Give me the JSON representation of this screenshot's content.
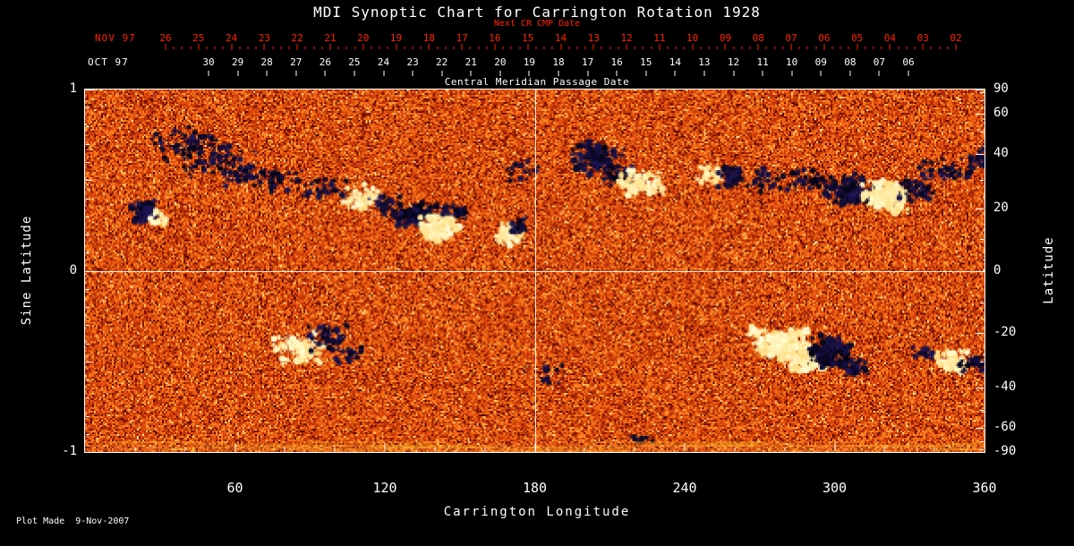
{
  "title": "MDI Synoptic Chart for Carrington Rotation 1928",
  "colors": {
    "background": "#000000",
    "axis": "#ffffff",
    "red_axis": "#ff2200"
  },
  "top_axis": {
    "next_cr_label": "Next CR CMP Date",
    "red_month": "NOV 97",
    "red_days": [
      "26",
      "25",
      "24",
      "23",
      "22",
      "21",
      "20",
      "19",
      "18",
      "17",
      "16",
      "15",
      "14",
      "13",
      "12",
      "11",
      "10",
      "09",
      "08",
      "07",
      "06",
      "05",
      "04",
      "03",
      "02"
    ],
    "white_month": "OCT 97",
    "white_days": [
      "30",
      "29",
      "28",
      "27",
      "26",
      "25",
      "24",
      "23",
      "22",
      "21",
      "20",
      "19",
      "18",
      "17",
      "16",
      "15",
      "14",
      "13",
      "12",
      "11",
      "10",
      "09",
      "08",
      "07",
      "06"
    ],
    "cmp_label": "Central Meridian Passage Date"
  },
  "footer": {
    "plot_made": "Plot Made  9-Nov-2007"
  },
  "chart_data": {
    "type": "heatmap",
    "title": "MDI Synoptic Chart for Carrington Rotation 1928",
    "xlabel": "Carrington Longitude",
    "ylabel_left": "Sine Latitude",
    "ylabel_right": "Latitude",
    "xlim": [
      0,
      360
    ],
    "x_major_ticks": [
      60,
      120,
      180,
      240,
      300,
      360
    ],
    "x_minor_step": 20,
    "y_sine_lim": [
      -1,
      1
    ],
    "left_tick_labels": [
      "1",
      "0",
      "-1"
    ],
    "left_tick_values": [
      1,
      0,
      -1
    ],
    "right_tick_labels": [
      "90",
      "60",
      "40",
      "20",
      "0",
      "-20",
      "-40",
      "-60",
      "-90"
    ],
    "right_tick_values": [
      90,
      60,
      40,
      20,
      0,
      -20,
      -40,
      -60,
      -90
    ],
    "gridlines": {
      "x": [
        180
      ],
      "y_sine": [
        0
      ]
    },
    "background_palette": [
      "#5a0800",
      "#8c1a02",
      "#be3406",
      "#e14e0e",
      "#f06c16",
      "#fb8c28",
      "#ffb34e",
      "#ffd98c"
    ],
    "negative_polarity_color": "#0a0a28",
    "positive_polarity_color": "#fff6dc",
    "active_regions": [
      {
        "lon": 40,
        "slat": 0.7,
        "pol": "-",
        "sl": 9,
        "ss": 0.07,
        "n": 70
      },
      {
        "lon": 52,
        "slat": 0.62,
        "pol": "-",
        "sl": 11,
        "ss": 0.08,
        "n": 90
      },
      {
        "lon": 64,
        "slat": 0.54,
        "pol": "-",
        "sl": 8,
        "ss": 0.05,
        "n": 55
      },
      {
        "lon": 24,
        "slat": 0.33,
        "pol": "-",
        "sl": 4,
        "ss": 0.045,
        "n": 70,
        "r": 1.2
      },
      {
        "lon": 29,
        "slat": 0.29,
        "pol": "+",
        "sl": 2.5,
        "ss": 0.03,
        "n": 28
      },
      {
        "lon": 78,
        "slat": 0.5,
        "pol": "-",
        "sl": 9,
        "ss": 0.05,
        "n": 40
      },
      {
        "lon": 95,
        "slat": 0.45,
        "pol": "-",
        "sl": 9,
        "ss": 0.05,
        "n": 45
      },
      {
        "lon": 112,
        "slat": 0.4,
        "pol": "+",
        "sl": 6,
        "ss": 0.05,
        "n": 85
      },
      {
        "lon": 121,
        "slat": 0.35,
        "pol": "-",
        "sl": 5,
        "ss": 0.045,
        "n": 50
      },
      {
        "lon": 132,
        "slat": 0.3,
        "pol": "-",
        "sl": 6,
        "ss": 0.05,
        "n": 95,
        "r": 1.2
      },
      {
        "lon": 141,
        "slat": 0.24,
        "pol": "+",
        "sl": 6,
        "ss": 0.05,
        "n": 120,
        "r": 1.3
      },
      {
        "lon": 148,
        "slat": 0.33,
        "pol": "-",
        "sl": 4,
        "ss": 0.04,
        "n": 35
      },
      {
        "lon": 170,
        "slat": 0.2,
        "pol": "+",
        "sl": 3.5,
        "ss": 0.045,
        "n": 65,
        "r": 1.2
      },
      {
        "lon": 174,
        "slat": 0.25,
        "pol": "-",
        "sl": 2.5,
        "ss": 0.03,
        "n": 25
      },
      {
        "lon": 176,
        "slat": 0.55,
        "pol": "-",
        "sl": 6,
        "ss": 0.05,
        "n": 25
      },
      {
        "lon": 205,
        "slat": 0.62,
        "pol": "-",
        "sl": 8,
        "ss": 0.06,
        "n": 110,
        "r": 1.2
      },
      {
        "lon": 214,
        "slat": 0.52,
        "pol": "-",
        "sl": 5,
        "ss": 0.04,
        "n": 45
      },
      {
        "lon": 222,
        "slat": 0.48,
        "pol": "+",
        "sl": 7,
        "ss": 0.05,
        "n": 95,
        "r": 1.2
      },
      {
        "lon": 250,
        "slat": 0.52,
        "pol": "+",
        "sl": 4,
        "ss": 0.04,
        "n": 55
      },
      {
        "lon": 259,
        "slat": 0.52,
        "pol": "-",
        "sl": 4,
        "ss": 0.04,
        "n": 65
      },
      {
        "lon": 273,
        "slat": 0.5,
        "pol": "-",
        "sl": 6,
        "ss": 0.05,
        "n": 40
      },
      {
        "lon": 290,
        "slat": 0.5,
        "pol": "-",
        "sl": 6,
        "ss": 0.05,
        "n": 45
      },
      {
        "lon": 305,
        "slat": 0.45,
        "pol": "-",
        "sl": 7,
        "ss": 0.06,
        "n": 120,
        "r": 1.3
      },
      {
        "lon": 320,
        "slat": 0.41,
        "pol": "+",
        "sl": 7,
        "ss": 0.06,
        "n": 140,
        "r": 1.4
      },
      {
        "lon": 332,
        "slat": 0.45,
        "pol": "-",
        "sl": 5,
        "ss": 0.05,
        "n": 60
      },
      {
        "lon": 345,
        "slat": 0.56,
        "pol": "-",
        "sl": 8,
        "ss": 0.05,
        "n": 55
      },
      {
        "lon": 357,
        "slat": 0.62,
        "pol": "-",
        "sl": 4,
        "ss": 0.04,
        "n": 30
      },
      {
        "lon": 85,
        "slat": -0.43,
        "pol": "+",
        "sl": 7,
        "ss": 0.06,
        "n": 95,
        "r": 1.2
      },
      {
        "lon": 97,
        "slat": -0.37,
        "pol": "-",
        "sl": 6,
        "ss": 0.05,
        "n": 55
      },
      {
        "lon": 106,
        "slat": -0.46,
        "pol": "-",
        "sl": 4,
        "ss": 0.04,
        "n": 30
      },
      {
        "lon": 183,
        "slat": -0.55,
        "pol": "-",
        "sl": 6,
        "ss": 0.05,
        "n": 22
      },
      {
        "lon": 278,
        "slat": -0.4,
        "pol": "+",
        "sl": 8,
        "ss": 0.06,
        "n": 150,
        "r": 1.4
      },
      {
        "lon": 288,
        "slat": -0.49,
        "pol": "+",
        "sl": 6,
        "ss": 0.05,
        "n": 90,
        "r": 1.3
      },
      {
        "lon": 298,
        "slat": -0.45,
        "pol": "-",
        "sl": 6,
        "ss": 0.06,
        "n": 115,
        "r": 1.3
      },
      {
        "lon": 308,
        "slat": -0.53,
        "pol": "-",
        "sl": 4,
        "ss": 0.045,
        "n": 45
      },
      {
        "lon": 336,
        "slat": -0.45,
        "pol": "-",
        "sl": 3,
        "ss": 0.03,
        "n": 25
      },
      {
        "lon": 347,
        "slat": -0.5,
        "pol": "+",
        "sl": 5,
        "ss": 0.05,
        "n": 75,
        "r": 1.2
      },
      {
        "lon": 356,
        "slat": -0.51,
        "pol": "-",
        "sl": 4,
        "ss": 0.04,
        "n": 45
      },
      {
        "lon": 222,
        "slat": -0.92,
        "pol": "-",
        "sl": 4,
        "ss": 0.02,
        "n": 15
      }
    ]
  }
}
